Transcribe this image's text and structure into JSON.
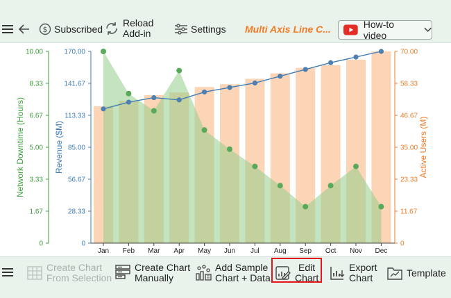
{
  "toolbar": {
    "subscribed": "Subscribed",
    "reload_line1": "Reload",
    "reload_line2": "Add-in",
    "settings": "Settings",
    "brand": "Multi Axis Line C...",
    "howto": "How-to video"
  },
  "bottom": {
    "create_sel_1": "Create Chart",
    "create_sel_2": "From Selection",
    "create_man_1": "Create Chart",
    "create_man_2": "Manually",
    "sample_1": "Add Sample",
    "sample_2": "Chart + Data",
    "edit_1": "Edit",
    "edit_2": "Chart",
    "export_1": "Export",
    "export_2": "Chart",
    "template": "Template"
  },
  "colors": {
    "green": "#3c9e3c",
    "blue": "#3f7db6",
    "orange": "#f07b26",
    "highlight": "#e0161b"
  },
  "icons": [
    "hamburger-icon",
    "back-arrow-icon",
    "dollar-icon",
    "reload-icon",
    "settings-icon",
    "youtube-icon",
    "chevron-down-icon"
  ],
  "chart_data": {
    "type": "line",
    "categories": [
      "Jan",
      "Feb",
      "Mar",
      "Apr",
      "May",
      "Jun",
      "Jul",
      "Aug",
      "Sep",
      "Oct",
      "Nov",
      "Dec"
    ],
    "axes": {
      "left_outer": {
        "label": "Network Downtime (Hours)",
        "min": 0,
        "max": 10,
        "ticks": [
          "0",
          "1.67",
          "3.33",
          "5.00",
          "6.67",
          "8.33",
          "10.00"
        ],
        "color": "#3c9e3c"
      },
      "left_inner": {
        "label": "Revenue ($M)",
        "min": 0,
        "max": 170,
        "ticks": [
          "0",
          "28.33",
          "56.67",
          "85.00",
          "113.33",
          "141.67",
          "170.00"
        ],
        "color": "#3f7db6"
      },
      "right": {
        "label": "Active Users (M)",
        "min": 0,
        "max": 70,
        "ticks": [
          "0",
          "11.67",
          "23.33",
          "35.00",
          "46.67",
          "58.33",
          "70.00"
        ],
        "color": "#f07b26"
      }
    },
    "series": [
      {
        "axis": "left_outer",
        "type": "area",
        "color": "#3c9e3c",
        "values": [
          10.0,
          7.8,
          6.9,
          9.0,
          5.9,
          4.9,
          4.0,
          3.0,
          1.9,
          3.0,
          4.0,
          1.9
        ]
      },
      {
        "axis": "left_inner",
        "type": "line",
        "color": "#3f7db6",
        "values": [
          119,
          125,
          129,
          127,
          134,
          138,
          142,
          148,
          154,
          160,
          165,
          170
        ]
      },
      {
        "axis": "right",
        "type": "bar",
        "color": "#fcd4b6",
        "values": [
          50,
          52,
          54,
          55,
          57,
          58,
          60,
          62,
          64,
          65,
          67,
          70
        ]
      }
    ]
  }
}
